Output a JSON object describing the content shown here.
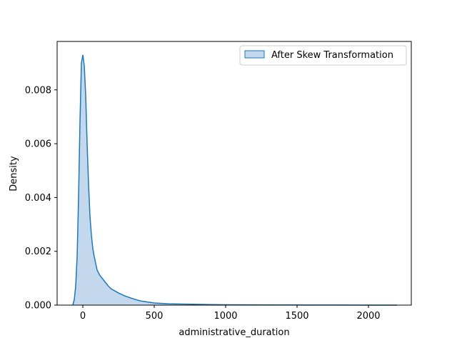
{
  "chart_data": {
    "type": "area",
    "title": "",
    "xlabel": "administrative_duration",
    "ylabel": "Density",
    "xlim": [
      -180,
      2300
    ],
    "ylim": [
      0,
      0.0098
    ],
    "x_ticks": [
      {
        "value": 0,
        "label": "0"
      },
      {
        "value": 500,
        "label": "500"
      },
      {
        "value": 1000,
        "label": "1000"
      },
      {
        "value": 1500,
        "label": "1500"
      },
      {
        "value": 2000,
        "label": "2000"
      }
    ],
    "y_ticks": [
      {
        "value": 0,
        "label": "0.000"
      },
      {
        "value": 0.002,
        "label": "0.002"
      },
      {
        "value": 0.004,
        "label": "0.004"
      },
      {
        "value": 0.006,
        "label": "0.006"
      },
      {
        "value": 0.008,
        "label": "0.008"
      }
    ],
    "grid": false,
    "legend_position": "top-right",
    "colors": {
      "line": "#1f77b4",
      "fill": "#c3d8ec",
      "axis": "#000000"
    },
    "series": [
      {
        "name": "After Skew Transformation",
        "x": [
          -70,
          -60,
          -50,
          -40,
          -30,
          -20,
          -10,
          0,
          10,
          20,
          30,
          40,
          50,
          60,
          70,
          80,
          90,
          100,
          120,
          150,
          180,
          200,
          250,
          300,
          350,
          400,
          450,
          500,
          600,
          700,
          800,
          900,
          1000,
          1200,
          1400,
          1600,
          1800,
          2000,
          2200
        ],
        "y": [
          0,
          0.0002,
          0.0007,
          0.0018,
          0.004,
          0.0068,
          0.009,
          0.0093,
          0.0089,
          0.0078,
          0.006,
          0.0045,
          0.0033,
          0.0026,
          0.0021,
          0.0018,
          0.00155,
          0.0013,
          0.0011,
          0.0009,
          0.0007,
          0.0006,
          0.00045,
          0.00033,
          0.00024,
          0.00016,
          0.00012,
          8e-05,
          5e-05,
          4e-05,
          3e-05,
          2e-05,
          1.5e-05,
          1e-05,
          7e-06,
          4e-06,
          2e-06,
          1e-06,
          5e-07
        ]
      }
    ]
  }
}
